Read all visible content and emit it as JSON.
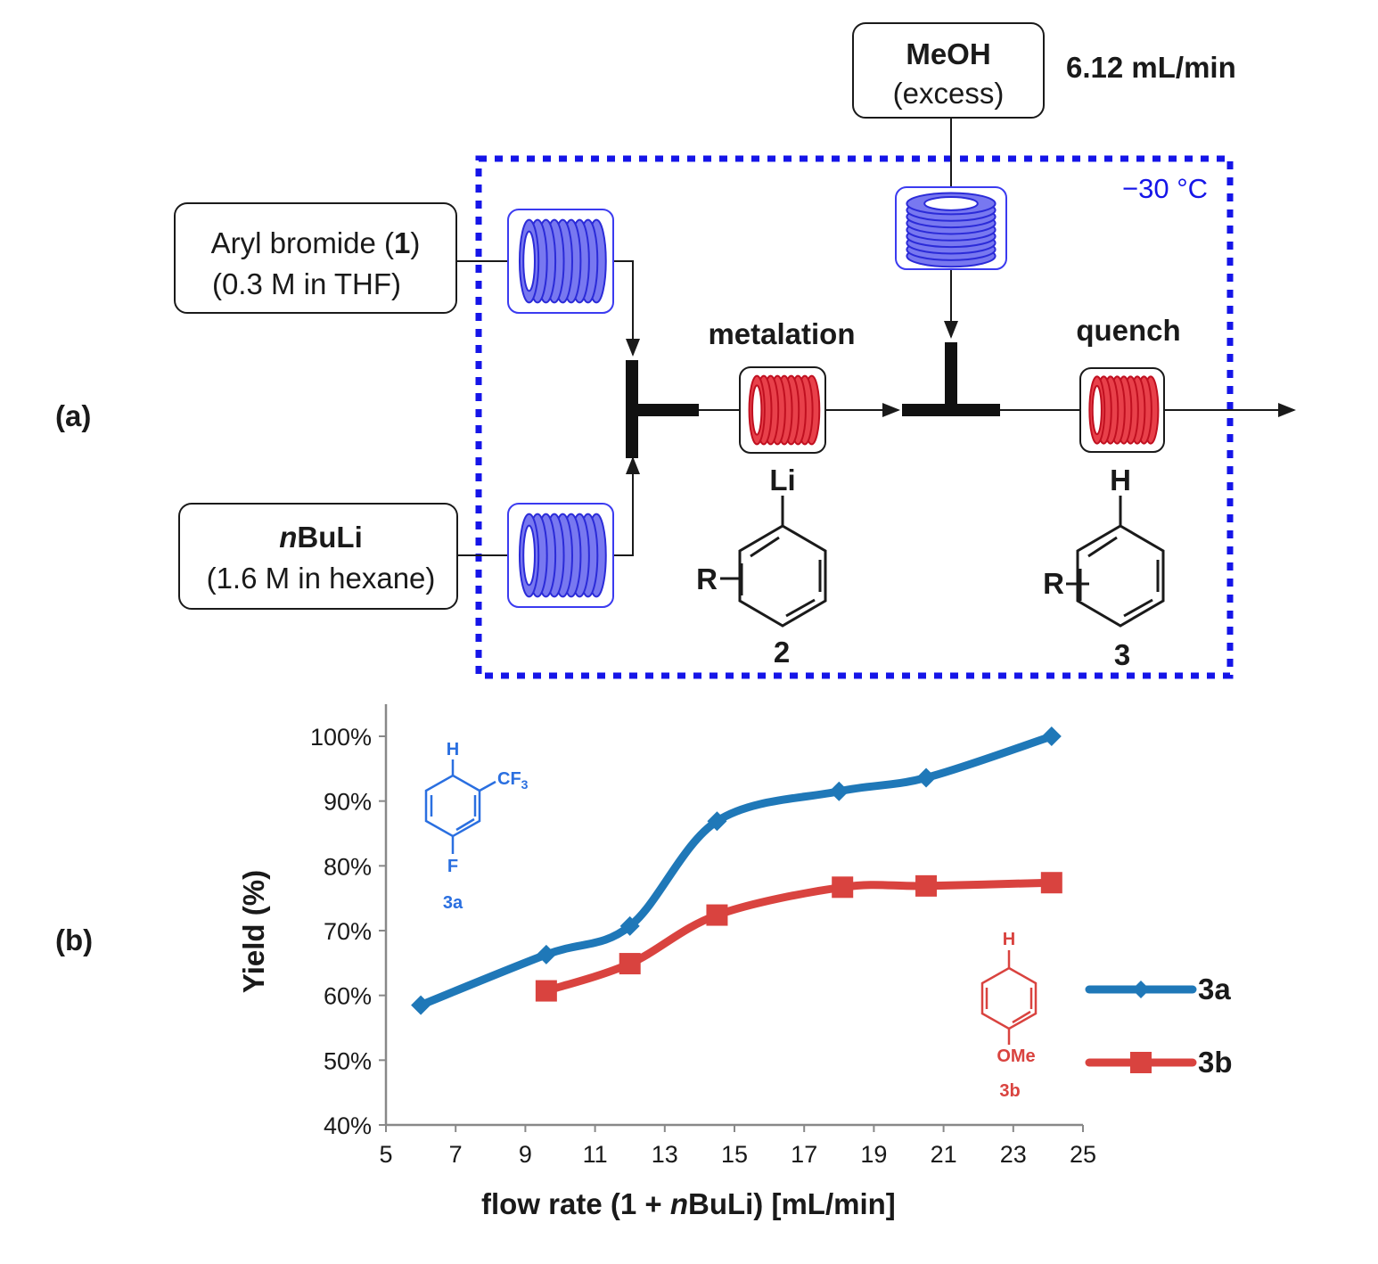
{
  "panel_labels": {
    "a": "(a)",
    "b": "(b)"
  },
  "colors": {
    "series_3a": "#1f78b8",
    "series_3b": "#d9433f",
    "cold_zone": "#1515e8",
    "coil_blue": "#7878f0",
    "coil_red": "#e8404a",
    "ink": "#1a1a1a",
    "axis": "#888888"
  },
  "flow_diagram": {
    "feeds": {
      "aryl_bromide": {
        "line1_pre": "Aryl bromide (",
        "line1_bold": "1",
        "line1_post": ")",
        "line2": "(0.3 M in THF)"
      },
      "nbuli": {
        "italic": "n",
        "bold": "BuLi",
        "line2": "(1.6 M in hexane)"
      },
      "meoh": {
        "line1": "MeOH",
        "line2": "(excess)",
        "rate": "6.12 mL/min"
      }
    },
    "temperature": "−30 °C",
    "stages": {
      "metalation": "metalation",
      "quench": "quench"
    },
    "compound_2": {
      "atom_top": "Li",
      "substituent": "R",
      "number": "2"
    },
    "compound_3": {
      "atom_top": "H",
      "substituent": "R",
      "number": "3"
    }
  },
  "chart_data": {
    "type": "line",
    "xlabel_parts": [
      "flow rate (1 + ",
      "n",
      "BuLi) [mL/min]"
    ],
    "ylabel": "Yield (%)",
    "xlim": [
      5,
      25
    ],
    "ylim": [
      40,
      100
    ],
    "x_ticks": [
      5,
      7,
      9,
      11,
      13,
      15,
      17,
      19,
      21,
      23,
      25
    ],
    "y_ticks": [
      "40%",
      "50%",
      "60%",
      "70%",
      "80%",
      "90%",
      "100%"
    ],
    "y_tick_values": [
      40,
      50,
      60,
      70,
      80,
      90,
      100
    ],
    "grid": false,
    "legend_position": "right",
    "series": [
      {
        "name": "3a",
        "marker": "diamond",
        "x": [
          6.0,
          9.6,
          12.0,
          14.5,
          18.0,
          20.5,
          24.1
        ],
        "y": [
          58.5,
          66.3,
          70.7,
          86.9,
          91.5,
          93.6,
          100.0
        ]
      },
      {
        "name": "3b",
        "marker": "square",
        "x": [
          9.6,
          12.0,
          14.5,
          18.1,
          20.5,
          24.1
        ],
        "y": [
          60.7,
          64.9,
          72.4,
          76.7,
          76.9,
          77.4
        ]
      }
    ],
    "insets": {
      "3a": {
        "top": "H",
        "side": "CF3",
        "side_main": "CF",
        "side_sub": "3",
        "bottom": "F",
        "label": "3a"
      },
      "3b": {
        "top": "H",
        "bottom": "OMe",
        "label": "3b"
      }
    }
  }
}
